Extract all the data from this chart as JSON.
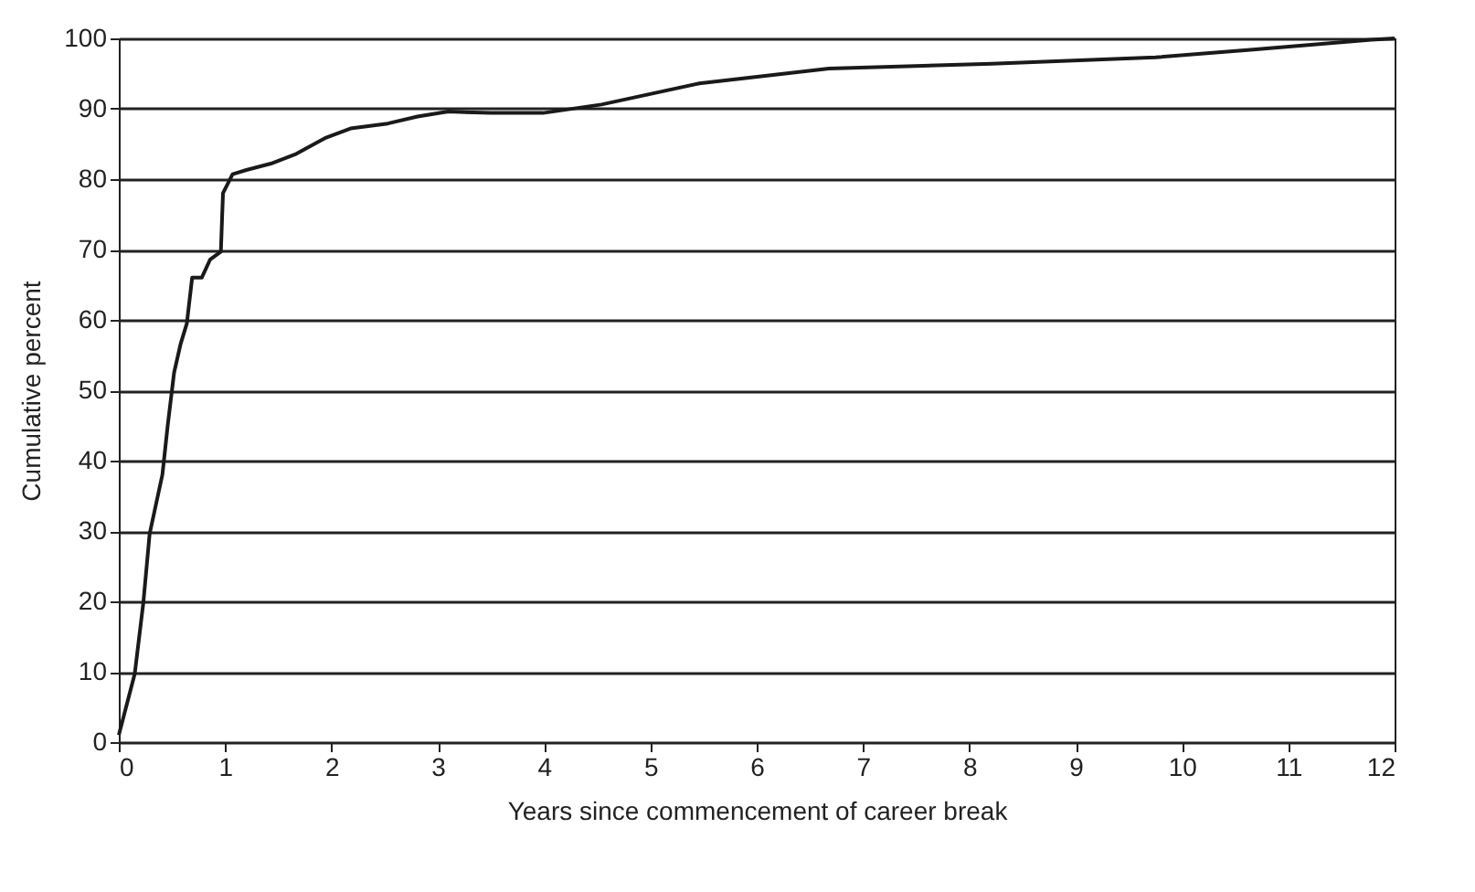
{
  "chart_data": {
    "type": "line",
    "xlabel": "Years since commencement of career break",
    "ylabel": "Cumulative percent",
    "x": [
      0,
      0.15,
      0.23,
      0.29,
      0.41,
      0.46,
      0.52,
      0.58,
      0.64,
      0.69,
      0.78,
      0.86,
      0.96,
      0.98,
      1.07,
      1.2,
      1.43,
      1.67,
      1.95,
      2.18,
      2.53,
      2.81,
      3.1,
      3.5,
      3.99,
      4.54,
      5.46,
      6.68,
      8.21,
      9.75,
      10.67,
      11.78,
      12
    ],
    "series": [
      {
        "color": "#1a1a1a",
        "values": [
          1,
          9.7,
          19.7,
          29.6,
          38,
          45,
          52.5,
          56.5,
          59.5,
          66,
          66,
          68.6,
          69.7,
          78,
          80.7,
          81.3,
          82.2,
          83.6,
          85.9,
          87.2,
          87.9,
          88.9,
          89.6,
          89.4,
          89.4,
          90.6,
          93.6,
          95.7,
          96.4,
          97.3,
          98.4,
          99.8,
          100
        ]
      }
    ],
    "xlim": [
      0,
      12
    ],
    "xticks": [
      0,
      1,
      2,
      3,
      4,
      5,
      6,
      7,
      8,
      9,
      10,
      11,
      12
    ],
    "ylim": [
      0,
      100
    ],
    "yticks": [
      0,
      10,
      20,
      30,
      40,
      50,
      60,
      70,
      80,
      90,
      100
    ],
    "grid": "y",
    "marker": "none",
    "line_style": "solid"
  }
}
